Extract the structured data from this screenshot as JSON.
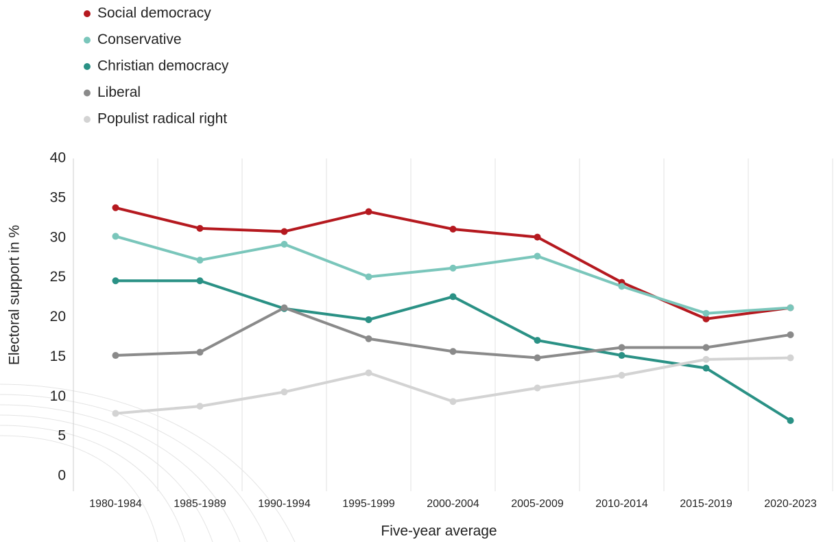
{
  "chart_data": {
    "type": "line",
    "x_label": "Five-year average",
    "y_label": "Electoral support in %",
    "categories": [
      "1980-1984",
      "1985-1989",
      "1990-1994",
      "1995-1999",
      "2000-2004",
      "2005-2009",
      "2010-2014",
      "2015-2019",
      "2020-2023"
    ],
    "series": [
      {
        "name": "Social democracy",
        "color": "#b5191f",
        "values": [
          33.8,
          31.2,
          30.8,
          33.3,
          31.1,
          30.1,
          24.4,
          19.8,
          21.2
        ]
      },
      {
        "name": "Conservative",
        "color": "#7ac6bb",
        "values": [
          30.2,
          27.2,
          29.2,
          25.1,
          26.2,
          27.7,
          23.9,
          20.5,
          21.2
        ]
      },
      {
        "name": "Christian democracy",
        "color": "#2a9185",
        "values": [
          24.6,
          24.6,
          21.1,
          19.7,
          22.6,
          17.1,
          15.2,
          13.6,
          7.0
        ]
      },
      {
        "name": "Liberal",
        "color": "#8a8a8a",
        "values": [
          15.2,
          15.6,
          21.2,
          17.3,
          15.7,
          14.9,
          16.2,
          16.2,
          17.8
        ]
      },
      {
        "name": "Populist radical right",
        "color": "#d3d3d3",
        "values": [
          7.9,
          8.8,
          10.6,
          13.0,
          9.4,
          11.1,
          12.7,
          14.7,
          14.9
        ]
      }
    ],
    "ylim": [
      0,
      40
    ],
    "yticks": [
      0,
      5,
      10,
      15,
      20,
      25,
      30,
      35,
      40
    ],
    "grid": true,
    "legend": "top-left"
  }
}
